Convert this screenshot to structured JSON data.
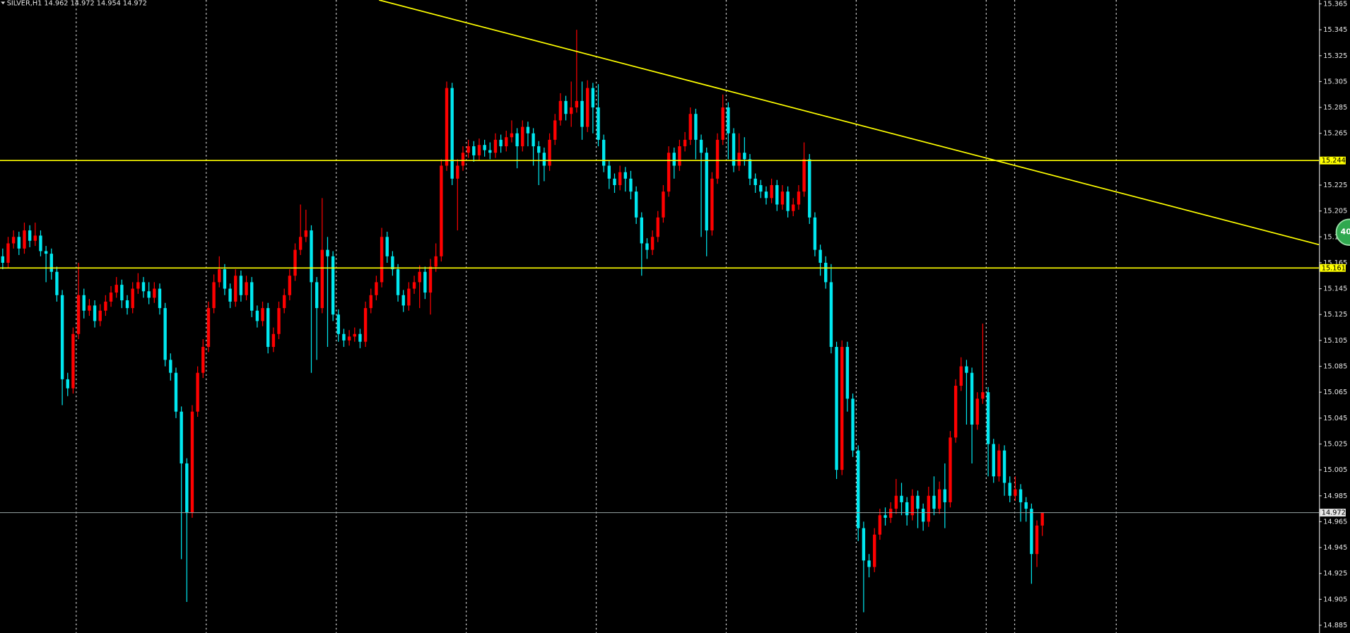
{
  "chart_data": {
    "type": "candlestick",
    "title": "SILVER,H1  14.962 14.972 14.954 14.972",
    "badge": "40",
    "bull_color": "#ff0000",
    "bear_color": "#00e8f0",
    "ylim": [
      14.879,
      15.368
    ],
    "yticks": [
      15.365,
      15.345,
      15.325,
      15.305,
      15.285,
      15.265,
      15.225,
      15.205,
      15.185,
      15.165,
      15.145,
      15.125,
      15.105,
      15.085,
      15.065,
      15.045,
      15.025,
      15.005,
      14.985,
      14.965,
      14.945,
      14.925,
      14.905,
      14.885
    ],
    "xlim": [
      -0.5,
      243.1
    ],
    "xticks": [
      13.5,
      37.5,
      61.5,
      85.5,
      109.5,
      133.5,
      157.5,
      181.5,
      186.8,
      205.5
    ],
    "grid": true,
    "hlines": [
      15.244,
      15.161
    ],
    "hline_color": "#ffff00",
    "bid": 14.972,
    "trendline": {
      "start": [
        69.5,
        15.368
      ],
      "end": [
        243.1,
        15.179
      ],
      "color": "#ffff00"
    },
    "candles": [
      [
        15.17,
        15.176,
        15.16,
        15.165
      ],
      [
        15.165,
        15.185,
        15.161,
        15.18
      ],
      [
        15.18,
        15.19,
        15.176,
        15.185
      ],
      [
        15.185,
        15.189,
        15.171,
        15.176
      ],
      [
        15.176,
        15.196,
        15.172,
        15.19
      ],
      [
        15.19,
        15.194,
        15.177,
        15.182
      ],
      [
        15.182,
        15.196,
        15.178,
        15.186
      ],
      [
        15.186,
        15.19,
        15.17,
        15.174
      ],
      [
        15.174,
        15.178,
        15.15,
        15.172
      ],
      [
        15.172,
        15.176,
        15.152,
        15.158
      ],
      [
        15.158,
        15.162,
        15.135,
        15.14
      ],
      [
        15.14,
        15.144,
        15.055,
        15.075
      ],
      [
        15.075,
        15.08,
        15.062,
        15.068
      ],
      [
        15.068,
        15.115,
        15.064,
        15.11
      ],
      [
        15.11,
        15.165,
        15.106,
        15.14
      ],
      [
        15.14,
        15.145,
        15.122,
        15.128
      ],
      [
        15.128,
        15.137,
        15.124,
        15.132
      ],
      [
        15.132,
        15.136,
        15.115,
        15.12
      ],
      [
        15.12,
        15.133,
        15.116,
        15.128
      ],
      [
        15.128,
        15.14,
        15.124,
        15.135
      ],
      [
        15.135,
        15.147,
        15.131,
        15.142
      ],
      [
        15.142,
        15.154,
        15.138,
        15.148
      ],
      [
        15.148,
        15.152,
        15.13,
        15.136
      ],
      [
        15.136,
        15.14,
        15.125,
        15.13
      ],
      [
        15.13,
        15.15,
        15.126,
        15.145
      ],
      [
        15.145,
        15.157,
        15.141,
        15.15
      ],
      [
        15.15,
        15.154,
        15.138,
        15.143
      ],
      [
        15.143,
        15.15,
        15.133,
        15.138
      ],
      [
        15.138,
        15.15,
        15.134,
        15.145
      ],
      [
        15.145,
        15.149,
        15.125,
        15.13
      ],
      [
        15.13,
        15.134,
        15.085,
        15.09
      ],
      [
        15.09,
        15.095,
        15.074,
        15.08
      ],
      [
        15.08,
        15.084,
        15.045,
        15.05
      ],
      [
        15.05,
        15.054,
        14.936,
        15.01
      ],
      [
        15.01,
        15.014,
        14.903,
        14.972
      ],
      [
        14.972,
        15.055,
        14.968,
        15.05
      ],
      [
        15.05,
        15.085,
        15.046,
        15.08
      ],
      [
        15.08,
        15.106,
        15.076,
        15.1
      ],
      [
        15.1,
        15.135,
        15.096,
        15.13
      ],
      [
        15.13,
        15.156,
        15.126,
        15.15
      ],
      [
        15.15,
        15.17,
        15.146,
        15.16
      ],
      [
        15.16,
        15.164,
        15.14,
        15.145
      ],
      [
        15.145,
        15.149,
        15.13,
        15.135
      ],
      [
        15.135,
        15.16,
        15.131,
        15.155
      ],
      [
        15.155,
        15.159,
        15.135,
        15.14
      ],
      [
        15.14,
        15.155,
        15.136,
        15.15
      ],
      [
        15.15,
        15.154,
        15.123,
        15.128
      ],
      [
        15.128,
        15.132,
        15.115,
        15.12
      ],
      [
        15.12,
        15.135,
        15.116,
        15.13
      ],
      [
        15.13,
        15.134,
        15.095,
        15.1
      ],
      [
        15.1,
        15.115,
        15.096,
        15.11
      ],
      [
        15.11,
        15.135,
        15.106,
        15.13
      ],
      [
        15.13,
        15.145,
        15.126,
        15.14
      ],
      [
        15.14,
        15.16,
        15.136,
        15.155
      ],
      [
        15.155,
        15.18,
        15.151,
        15.175
      ],
      [
        15.175,
        15.21,
        15.171,
        15.185
      ],
      [
        15.185,
        15.206,
        15.181,
        15.19
      ],
      [
        15.19,
        15.194,
        15.08,
        15.15
      ],
      [
        15.15,
        15.154,
        15.09,
        15.13
      ],
      [
        15.13,
        15.215,
        15.126,
        15.175
      ],
      [
        15.175,
        15.185,
        15.1,
        15.17
      ],
      [
        15.17,
        15.174,
        15.12,
        15.125
      ],
      [
        15.125,
        15.129,
        15.104,
        15.11
      ],
      [
        15.11,
        15.114,
        15.1,
        15.105
      ],
      [
        15.105,
        15.113,
        15.101,
        15.108
      ],
      [
        15.108,
        15.115,
        15.104,
        15.11
      ],
      [
        15.11,
        15.114,
        15.099,
        15.104
      ],
      [
        15.104,
        15.135,
        15.1,
        15.13
      ],
      [
        15.13,
        15.145,
        15.126,
        15.14
      ],
      [
        15.14,
        15.155,
        15.136,
        15.15
      ],
      [
        15.15,
        15.192,
        15.146,
        15.185
      ],
      [
        15.185,
        15.189,
        15.165,
        15.17
      ],
      [
        15.17,
        15.174,
        15.155,
        15.16
      ],
      [
        15.16,
        15.164,
        15.135,
        15.14
      ],
      [
        15.14,
        15.144,
        15.127,
        15.132
      ],
      [
        15.132,
        15.15,
        15.128,
        15.145
      ],
      [
        15.145,
        15.155,
        15.141,
        15.15
      ],
      [
        15.15,
        15.163,
        15.13,
        15.158
      ],
      [
        15.158,
        15.162,
        15.137,
        15.142
      ],
      [
        15.142,
        15.168,
        15.125,
        15.162
      ],
      [
        15.162,
        15.18,
        15.158,
        15.17
      ],
      [
        15.17,
        15.245,
        15.166,
        15.24
      ],
      [
        15.24,
        15.305,
        15.236,
        15.3
      ],
      [
        15.3,
        15.304,
        15.225,
        15.23
      ],
      [
        15.23,
        15.245,
        15.19,
        15.24
      ],
      [
        15.24,
        15.255,
        15.236,
        15.25
      ],
      [
        15.25,
        15.26,
        15.246,
        15.255
      ],
      [
        15.255,
        15.259,
        15.243,
        15.248
      ],
      [
        15.248,
        15.261,
        15.244,
        15.256
      ],
      [
        15.256,
        15.26,
        15.247,
        15.252
      ],
      [
        15.252,
        15.258,
        15.245,
        15.25
      ],
      [
        15.25,
        15.265,
        15.246,
        15.26
      ],
      [
        15.26,
        15.264,
        15.25,
        15.255
      ],
      [
        15.255,
        15.267,
        15.251,
        15.262
      ],
      [
        15.262,
        15.275,
        15.258,
        15.265
      ],
      [
        15.265,
        15.269,
        15.238,
        15.255
      ],
      [
        15.255,
        15.275,
        15.251,
        15.27
      ],
      [
        15.27,
        15.274,
        15.255,
        15.265
      ],
      [
        15.265,
        15.269,
        15.24,
        15.255
      ],
      [
        15.255,
        15.259,
        15.225,
        15.25
      ],
      [
        15.25,
        15.254,
        15.228,
        15.24
      ],
      [
        15.24,
        15.265,
        15.236,
        15.26
      ],
      [
        15.26,
        15.28,
        15.256,
        15.275
      ],
      [
        15.275,
        15.296,
        15.271,
        15.29
      ],
      [
        15.29,
        15.294,
        15.275,
        15.28
      ],
      [
        15.28,
        15.305,
        15.27,
        15.285
      ],
      [
        15.285,
        15.345,
        15.281,
        15.29
      ],
      [
        15.29,
        15.305,
        15.26,
        15.27
      ],
      [
        15.27,
        15.306,
        15.266,
        15.3
      ],
      [
        15.3,
        15.304,
        15.265,
        15.285
      ],
      [
        15.285,
        15.303,
        15.255,
        15.26
      ],
      [
        15.26,
        15.264,
        15.235,
        15.24
      ],
      [
        15.24,
        15.244,
        15.222,
        15.23
      ],
      [
        15.23,
        15.234,
        15.219,
        15.225
      ],
      [
        15.225,
        15.24,
        15.221,
        15.235
      ],
      [
        15.235,
        15.239,
        15.22,
        15.23
      ],
      [
        15.23,
        15.236,
        15.214,
        15.22
      ],
      [
        15.22,
        15.224,
        15.195,
        15.2
      ],
      [
        15.2,
        15.204,
        15.155,
        15.18
      ],
      [
        15.18,
        15.184,
        15.168,
        15.175
      ],
      [
        15.175,
        15.19,
        15.171,
        15.185
      ],
      [
        15.185,
        15.205,
        15.181,
        15.2
      ],
      [
        15.2,
        15.225,
        15.196,
        15.22
      ],
      [
        15.22,
        15.255,
        15.216,
        15.25
      ],
      [
        15.25,
        15.254,
        15.23,
        15.24
      ],
      [
        15.24,
        15.26,
        15.236,
        15.255
      ],
      [
        15.255,
        15.266,
        15.251,
        15.26
      ],
      [
        15.26,
        15.285,
        15.256,
        15.28
      ],
      [
        15.28,
        15.284,
        15.245,
        15.26
      ],
      [
        15.26,
        15.264,
        15.185,
        15.25
      ],
      [
        15.25,
        15.254,
        15.17,
        15.19
      ],
      [
        15.19,
        15.235,
        15.186,
        15.23
      ],
      [
        15.23,
        15.265,
        15.226,
        15.26
      ],
      [
        15.26,
        15.295,
        15.256,
        15.285
      ],
      [
        15.285,
        15.289,
        15.245,
        15.265
      ],
      [
        15.265,
        15.269,
        15.235,
        15.24
      ],
      [
        15.24,
        15.265,
        15.236,
        15.25
      ],
      [
        15.25,
        15.262,
        15.24,
        15.245
      ],
      [
        15.245,
        15.249,
        15.225,
        15.23
      ],
      [
        15.23,
        15.234,
        15.219,
        15.225
      ],
      [
        15.225,
        15.229,
        15.215,
        15.22
      ],
      [
        15.22,
        15.224,
        15.21,
        15.215
      ],
      [
        15.215,
        15.23,
        15.211,
        15.225
      ],
      [
        15.225,
        15.229,
        15.205,
        15.21
      ],
      [
        15.21,
        15.225,
        15.206,
        15.22
      ],
      [
        15.22,
        15.224,
        15.2,
        15.205
      ],
      [
        15.205,
        15.215,
        15.201,
        15.21
      ],
      [
        15.21,
        15.225,
        15.206,
        15.22
      ],
      [
        15.22,
        15.258,
        15.216,
        15.245
      ],
      [
        15.245,
        15.249,
        15.195,
        15.2
      ],
      [
        15.2,
        15.204,
        15.17,
        15.175
      ],
      [
        15.175,
        15.179,
        15.155,
        15.165
      ],
      [
        15.165,
        15.17,
        15.145,
        15.15
      ],
      [
        15.15,
        15.164,
        15.095,
        15.1
      ],
      [
        15.1,
        15.104,
        14.998,
        15.005
      ],
      [
        15.005,
        15.105,
        15.001,
        15.1
      ],
      [
        15.1,
        15.104,
        15.05,
        15.06
      ],
      [
        15.06,
        15.064,
        15.015,
        15.02
      ],
      [
        15.02,
        15.024,
        14.95,
        14.96
      ],
      [
        14.96,
        14.965,
        14.895,
        14.935
      ],
      [
        14.935,
        14.94,
        14.922,
        14.93
      ],
      [
        14.93,
        14.96,
        14.926,
        14.955
      ],
      [
        14.955,
        14.975,
        14.951,
        14.97
      ],
      [
        14.97,
        14.976,
        14.962,
        14.968
      ],
      [
        14.968,
        14.98,
        14.964,
        14.975
      ],
      [
        14.975,
        14.998,
        14.971,
        14.985
      ],
      [
        14.985,
        14.995,
        14.97,
        14.98
      ],
      [
        14.98,
        14.984,
        14.962,
        14.97
      ],
      [
        14.97,
        14.99,
        14.966,
        14.985
      ],
      [
        14.985,
        14.989,
        14.96,
        14.975
      ],
      [
        14.975,
        14.979,
        14.958,
        14.965
      ],
      [
        14.965,
        14.992,
        14.961,
        14.985
      ],
      [
        14.985,
        15.0,
        14.97,
        14.975
      ],
      [
        14.975,
        14.996,
        14.971,
        14.99
      ],
      [
        14.99,
        15.01,
        14.96,
        14.98
      ],
      [
        14.98,
        15.035,
        14.976,
        15.03
      ],
      [
        15.03,
        15.075,
        15.026,
        15.07
      ],
      [
        15.07,
        15.092,
        15.066,
        15.085
      ],
      [
        15.085,
        15.09,
        15.04,
        15.08
      ],
      [
        15.08,
        15.084,
        15.01,
        15.04
      ],
      [
        15.04,
        15.065,
        15.036,
        15.06
      ],
      [
        15.06,
        15.118,
        15.056,
        15.065
      ],
      [
        15.065,
        15.069,
        15.0,
        15.025
      ],
      [
        15.025,
        15.029,
        14.995,
        15.0
      ],
      [
        15.0,
        15.025,
        14.996,
        15.02
      ],
      [
        15.02,
        15.024,
        14.985,
        14.995
      ],
      [
        14.995,
        15.0,
        14.98,
        14.985
      ],
      [
        14.985,
        15.0,
        14.981,
        14.99
      ],
      [
        14.99,
        14.994,
        14.965,
        14.98
      ],
      [
        14.98,
        14.984,
        14.965,
        14.975
      ],
      [
        14.975,
        14.979,
        14.917,
        14.94
      ],
      [
        14.94,
        14.966,
        14.93,
        14.962
      ],
      [
        14.962,
        14.972,
        14.954,
        14.972
      ]
    ]
  }
}
